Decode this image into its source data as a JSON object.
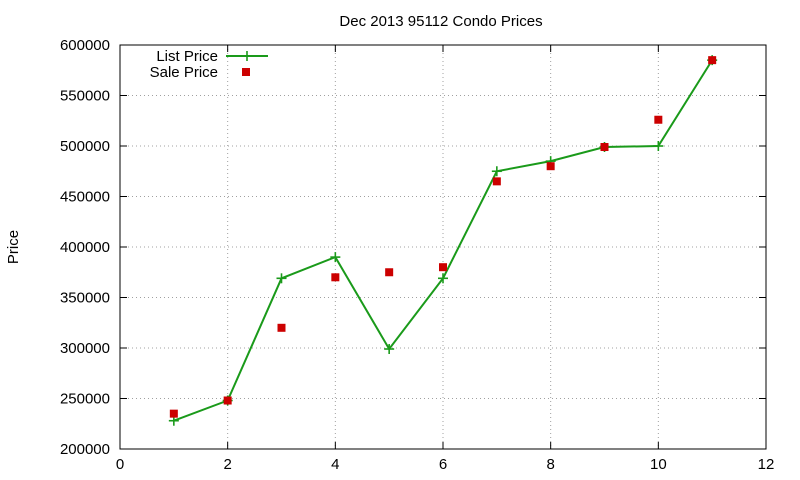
{
  "chart_data": {
    "type": "line",
    "title": "Dec 2013 95112 Condo Prices",
    "xlabel": "",
    "ylabel": "Price",
    "xlim": [
      0,
      12
    ],
    "ylim": [
      200000,
      600000
    ],
    "x_ticks": [
      0,
      2,
      4,
      6,
      8,
      10,
      12
    ],
    "y_ticks": [
      200000,
      250000,
      300000,
      350000,
      400000,
      450000,
      500000,
      550000,
      600000
    ],
    "grid": true,
    "legend_position": "top-left",
    "series": [
      {
        "name": "List Price",
        "style": "line-with-plus-markers",
        "color": "#1a9a1a",
        "x": [
          1,
          2,
          3,
          4,
          5,
          6,
          7,
          8,
          9,
          10,
          11
        ],
        "y": [
          228000,
          248000,
          369000,
          390000,
          299000,
          369000,
          475000,
          485000,
          499000,
          500000,
          585000
        ]
      },
      {
        "name": "Sale Price",
        "style": "square-points",
        "color": "#cc0000",
        "x": [
          1,
          2,
          3,
          4,
          5,
          6,
          7,
          8,
          9,
          10,
          11
        ],
        "y": [
          235000,
          248000,
          320000,
          370000,
          375000,
          380000,
          465000,
          480000,
          499000,
          526000,
          585000
        ]
      }
    ]
  }
}
